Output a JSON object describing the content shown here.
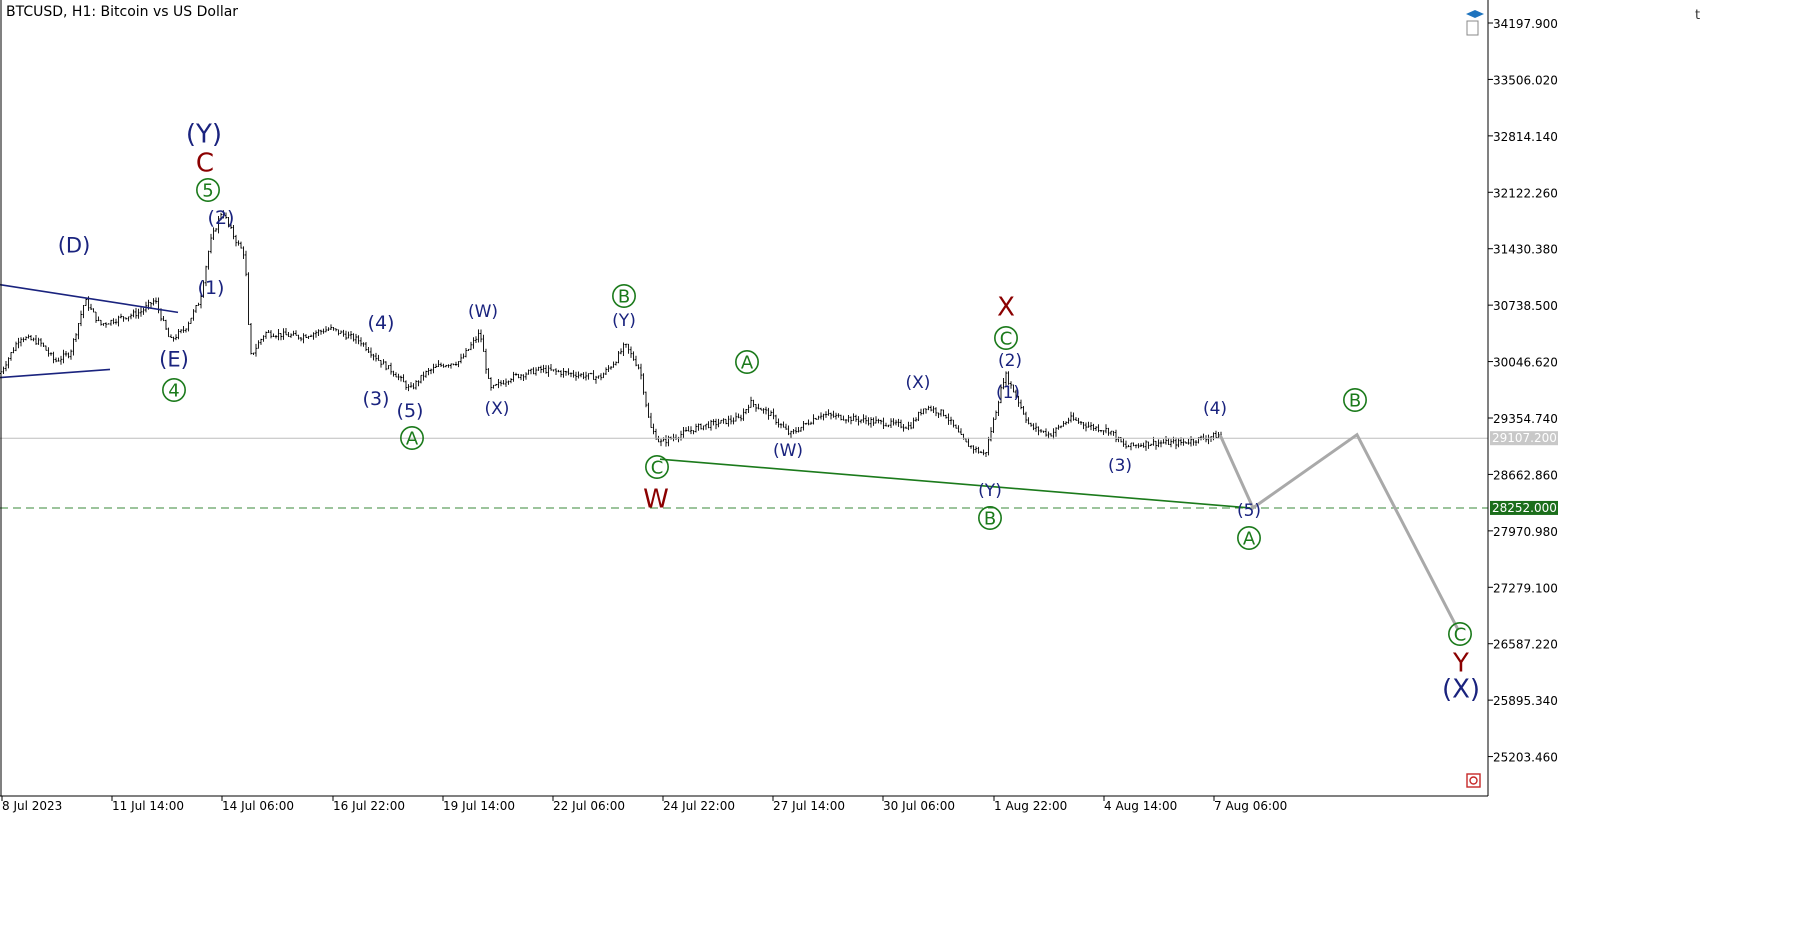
{
  "header": {
    "title": "BTCUSD, H1:  Bitcoin vs US Dollar"
  },
  "toolbar_icons": [
    "text-icon",
    "graduation-cap-icon",
    "document-icon",
    "close-box-icon"
  ],
  "toolbar_text": "t",
  "colors": {
    "navy": "#1a237e",
    "green": "#1b7a1b",
    "darkred": "#8b0000",
    "price_line": "#bdbdbd",
    "target_line": "#3a8a3a",
    "price_tag_bg": "#c8c8c8",
    "target_tag_bg": "#1b6e1b",
    "projection": "#a9a9a9",
    "candles": "#000000"
  },
  "chart_data": {
    "type": "line",
    "symbol": "BTCUSD",
    "timeframe": "H1",
    "y_ticks": [
      "34197.900",
      "33506.020",
      "32814.140",
      "32122.260",
      "31430.380",
      "30738.500",
      "30046.620",
      "29354.740",
      "28662.860",
      "27970.980",
      "27279.100",
      "26587.220",
      "25895.340",
      "25203.460"
    ],
    "x_ticks": [
      "8 Jul 2023",
      "11 Jul 14:00",
      "14 Jul 06:00",
      "16 Jul 22:00",
      "19 Jul 14:00",
      "22 Jul 06:00",
      "24 Jul 22:00",
      "27 Jul 14:00",
      "30 Jul 06:00",
      "1 Aug 22:00",
      "4 Aug 14:00",
      "7 Aug 06:00"
    ],
    "ylim": [
      24720,
      34480
    ],
    "current_price": "29107.200",
    "target_price": "28252.000",
    "price_path": [
      [
        0,
        29900
      ],
      [
        20,
        30350
      ],
      [
        40,
        30280
      ],
      [
        55,
        30050
      ],
      [
        70,
        30150
      ],
      [
        85,
        30800
      ],
      [
        100,
        30500
      ],
      [
        120,
        30580
      ],
      [
        140,
        30650
      ],
      [
        155,
        30800
      ],
      [
        170,
        30300
      ],
      [
        185,
        30450
      ],
      [
        200,
        30800
      ],
      [
        210,
        31500
      ],
      [
        222,
        31900
      ],
      [
        235,
        31550
      ],
      [
        245,
        31350
      ],
      [
        250,
        30100
      ],
      [
        265,
        30400
      ],
      [
        300,
        30350
      ],
      [
        330,
        30450
      ],
      [
        360,
        30300
      ],
      [
        380,
        30050
      ],
      [
        395,
        29900
      ],
      [
        410,
        29700
      ],
      [
        425,
        29900
      ],
      [
        440,
        30000
      ],
      [
        460,
        30050
      ],
      [
        480,
        30400
      ],
      [
        490,
        29700
      ],
      [
        510,
        29850
      ],
      [
        540,
        29950
      ],
      [
        570,
        29900
      ],
      [
        600,
        29850
      ],
      [
        615,
        30050
      ],
      [
        625,
        30250
      ],
      [
        640,
        29950
      ],
      [
        650,
        29250
      ],
      [
        660,
        29050
      ],
      [
        680,
        29150
      ],
      [
        700,
        29250
      ],
      [
        720,
        29300
      ],
      [
        740,
        29350
      ],
      [
        750,
        29550
      ],
      [
        770,
        29400
      ],
      [
        790,
        29150
      ],
      [
        820,
        29400
      ],
      [
        850,
        29350
      ],
      [
        880,
        29300
      ],
      [
        910,
        29250
      ],
      [
        925,
        29500
      ],
      [
        945,
        29400
      ],
      [
        965,
        29050
      ],
      [
        985,
        28900
      ],
      [
        995,
        29400
      ],
      [
        1005,
        29900
      ],
      [
        1015,
        29650
      ],
      [
        1030,
        29250
      ],
      [
        1050,
        29150
      ],
      [
        1070,
        29350
      ],
      [
        1090,
        29250
      ],
      [
        1110,
        29200
      ],
      [
        1125,
        29000
      ],
      [
        1150,
        29050
      ],
      [
        1180,
        29050
      ],
      [
        1200,
        29100
      ],
      [
        1220,
        29150
      ]
    ],
    "projection_path": [
      [
        1220,
        29150
      ],
      [
        1253,
        28252
      ],
      [
        1357,
        29150
      ],
      [
        1458,
        26760
      ]
    ],
    "trendlines": [
      {
        "name": "triangle-upper",
        "color": "navy",
        "points": [
          [
            0,
            30990
          ],
          [
            178,
            30650
          ]
        ]
      },
      {
        "name": "triangle-lower",
        "color": "navy",
        "points": [
          [
            0,
            29850
          ],
          [
            110,
            29950
          ]
        ]
      },
      {
        "name": "wave-base",
        "color": "green",
        "points": [
          [
            660,
            28850
          ],
          [
            1250,
            28252
          ]
        ]
      }
    ],
    "annotations": [
      {
        "text": "(Y)",
        "x": 204,
        "y": 133,
        "color": "navy",
        "size": 26,
        "circle": false
      },
      {
        "text": "C",
        "x": 205,
        "y": 162,
        "color": "darkred",
        "size": 26,
        "circle": false
      },
      {
        "text": "5",
        "x": 208,
        "y": 190,
        "color": "green",
        "size": 18,
        "circle": true
      },
      {
        "text": "(2)",
        "x": 221,
        "y": 217,
        "color": "navy",
        "size": 19,
        "circle": false
      },
      {
        "text": "(1)",
        "x": 211,
        "y": 287,
        "color": "navy",
        "size": 19,
        "circle": false
      },
      {
        "text": "(D)",
        "x": 74,
        "y": 245,
        "color": "navy",
        "size": 21,
        "circle": false
      },
      {
        "text": "(E)",
        "x": 174,
        "y": 359,
        "color": "navy",
        "size": 21,
        "circle": false
      },
      {
        "text": "4",
        "x": 174,
        "y": 390,
        "color": "green",
        "size": 18,
        "circle": true
      },
      {
        "text": "(4)",
        "x": 381,
        "y": 322,
        "color": "navy",
        "size": 19,
        "circle": false
      },
      {
        "text": "(3)",
        "x": 376,
        "y": 398,
        "color": "navy",
        "size": 19,
        "circle": false
      },
      {
        "text": "(5)",
        "x": 410,
        "y": 410,
        "color": "navy",
        "size": 19,
        "circle": false
      },
      {
        "text": "A",
        "x": 412,
        "y": 438,
        "color": "green",
        "size": 18,
        "circle": true
      },
      {
        "text": "(W)",
        "x": 483,
        "y": 311,
        "color": "navy",
        "size": 17,
        "circle": false
      },
      {
        "text": "(X)",
        "x": 497,
        "y": 408,
        "color": "navy",
        "size": 17,
        "circle": false
      },
      {
        "text": "B",
        "x": 624,
        "y": 296,
        "color": "green",
        "size": 18,
        "circle": true
      },
      {
        "text": "(Y)",
        "x": 624,
        "y": 320,
        "color": "navy",
        "size": 17,
        "circle": false
      },
      {
        "text": "C",
        "x": 657,
        "y": 467,
        "color": "green",
        "size": 18,
        "circle": true
      },
      {
        "text": "W",
        "x": 656,
        "y": 498,
        "color": "darkred",
        "size": 26,
        "circle": false
      },
      {
        "text": "A",
        "x": 747,
        "y": 362,
        "color": "green",
        "size": 18,
        "circle": true
      },
      {
        "text": "(W)",
        "x": 788,
        "y": 450,
        "color": "navy",
        "size": 17,
        "circle": false
      },
      {
        "text": "(X)",
        "x": 918,
        "y": 382,
        "color": "navy",
        "size": 17,
        "circle": false
      },
      {
        "text": "X",
        "x": 1006,
        "y": 306,
        "color": "darkred",
        "size": 26,
        "circle": false
      },
      {
        "text": "C",
        "x": 1006,
        "y": 338,
        "color": "green",
        "size": 18,
        "circle": true
      },
      {
        "text": "(2)",
        "x": 1010,
        "y": 360,
        "color": "navy",
        "size": 17,
        "circle": false
      },
      {
        "text": "(1)",
        "x": 1008,
        "y": 392,
        "color": "navy",
        "size": 17,
        "circle": false
      },
      {
        "text": "(Y)",
        "x": 990,
        "y": 490,
        "color": "navy",
        "size": 17,
        "circle": false
      },
      {
        "text": "B",
        "x": 990,
        "y": 518,
        "color": "green",
        "size": 18,
        "circle": true
      },
      {
        "text": "(3)",
        "x": 1120,
        "y": 465,
        "color": "navy",
        "size": 17,
        "circle": false
      },
      {
        "text": "(4)",
        "x": 1215,
        "y": 408,
        "color": "navy",
        "size": 17,
        "circle": false
      },
      {
        "text": "(5)",
        "x": 1249,
        "y": 510,
        "color": "navy",
        "size": 17,
        "circle": false
      },
      {
        "text": "A",
        "x": 1249,
        "y": 538,
        "color": "green",
        "size": 18,
        "circle": true
      },
      {
        "text": "B",
        "x": 1355,
        "y": 400,
        "color": "green",
        "size": 18,
        "circle": true
      },
      {
        "text": "C",
        "x": 1460,
        "y": 634,
        "color": "green",
        "size": 18,
        "circle": true
      },
      {
        "text": "Y",
        "x": 1461,
        "y": 662,
        "color": "darkred",
        "size": 26,
        "circle": false
      },
      {
        "text": "(X)",
        "x": 1461,
        "y": 688,
        "color": "navy",
        "size": 26,
        "circle": false
      }
    ]
  }
}
